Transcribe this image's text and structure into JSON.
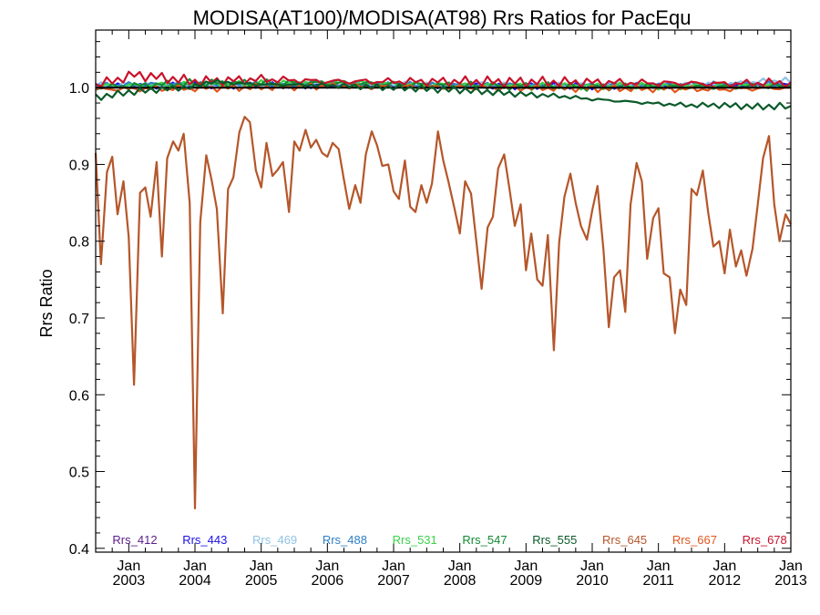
{
  "chart_data": {
    "type": "line",
    "title": "MODISA(AT100)/MODISA(AT98)  Rrs Ratios for PacEqu",
    "xlabel": "",
    "ylabel": "Rrs Ratio",
    "ylim": [
      0.395,
      1.075
    ],
    "yticks": [
      0.4,
      0.5,
      0.6,
      0.7,
      0.8,
      0.9,
      1.0
    ],
    "ytick_labels": [
      "0.4",
      "0.5",
      "0.6",
      "0.7",
      "0.8",
      "0.9",
      "1.0"
    ],
    "xlim": [
      2002.5,
      2013.0
    ],
    "xticks": [
      2003,
      2004,
      2005,
      2006,
      2007,
      2008,
      2009,
      2010,
      2011,
      2012,
      2013
    ],
    "xtick_labels": [
      {
        "month": "Jan",
        "year": "2003"
      },
      {
        "month": "Jan",
        "year": "2004"
      },
      {
        "month": "Jan",
        "year": "2005"
      },
      {
        "month": "Jan",
        "year": "2006"
      },
      {
        "month": "Jan",
        "year": "2007"
      },
      {
        "month": "Jan",
        "year": "2008"
      },
      {
        "month": "Jan",
        "year": "2009"
      },
      {
        "month": "Jan",
        "year": "2010"
      },
      {
        "month": "Jan",
        "year": "2011"
      },
      {
        "month": "Jan",
        "year": "2012"
      },
      {
        "month": "Jan",
        "year": "2013"
      }
    ],
    "reference_line": 1.0,
    "legend_position": "bottom",
    "series": [
      {
        "name": "Rrs_412",
        "color": "#5a1e8c",
        "noise": [
          0.004,
          0.003
        ],
        "values": [
          [
            2002.5,
            1.001
          ],
          [
            2004,
            1.002
          ],
          [
            2006,
            1.003
          ],
          [
            2008,
            1.002
          ],
          [
            2010,
            1.001
          ],
          [
            2012,
            1.002
          ],
          [
            2013,
            1.003
          ]
        ]
      },
      {
        "name": "Rrs_443",
        "color": "#1a10e8",
        "noise": [
          0.004,
          0.004
        ],
        "values": [
          [
            2002.5,
            1.002
          ],
          [
            2004,
            1.003
          ],
          [
            2006,
            1.003
          ],
          [
            2008,
            1.002
          ],
          [
            2010,
            1.002
          ],
          [
            2012,
            1.003
          ],
          [
            2013,
            1.004
          ]
        ]
      },
      {
        "name": "Rrs_469",
        "color": "#90c4e6",
        "noise": [
          0.004,
          0.004
        ],
        "values": [
          [
            2002.5,
            1.003
          ],
          [
            2004,
            1.004
          ],
          [
            2006,
            1.004
          ],
          [
            2008,
            1.003
          ],
          [
            2010,
            1.003
          ],
          [
            2012,
            1.004
          ],
          [
            2012.9,
            1.01
          ],
          [
            2013,
            1.006
          ]
        ]
      },
      {
        "name": "Rrs_488",
        "color": "#2e7fc6",
        "noise": [
          0.004,
          0.004
        ],
        "values": [
          [
            2002.5,
            1.003
          ],
          [
            2004,
            1.005
          ],
          [
            2006,
            1.004
          ],
          [
            2008,
            1.003
          ],
          [
            2010,
            1.003
          ],
          [
            2012,
            1.004
          ],
          [
            2013,
            1.004
          ]
        ]
      },
      {
        "name": "Rrs_531",
        "color": "#3ad24a",
        "noise": [
          0.004,
          0.005
        ],
        "values": [
          [
            2002.5,
            1.002
          ],
          [
            2004,
            1.004
          ],
          [
            2006,
            1.006
          ],
          [
            2008,
            1.003
          ],
          [
            2010,
            1.002
          ],
          [
            2012,
            1.002
          ],
          [
            2013,
            1.003
          ]
        ]
      },
      {
        "name": "Rrs_547",
        "color": "#148a32",
        "noise": [
          0.005,
          0.005
        ],
        "values": [
          [
            2002.5,
            1.0
          ],
          [
            2004,
            1.006
          ],
          [
            2006,
            1.006
          ],
          [
            2008,
            1.003
          ],
          [
            2010,
            1.001
          ],
          [
            2012,
            1.001
          ],
          [
            2013,
            1.002
          ]
        ]
      },
      {
        "name": "Rrs_555",
        "color": "#0b5a2a",
        "noise": [
          0.006,
          0.002
        ],
        "values": [
          [
            2002.5,
            0.987
          ],
          [
            2003,
            0.994
          ],
          [
            2003.5,
            0.998
          ],
          [
            2004,
            1.001
          ],
          [
            2004.2,
            1.008
          ],
          [
            2005,
            1.004
          ],
          [
            2006,
            1.003
          ],
          [
            2007,
            1.0
          ],
          [
            2008,
            0.997
          ],
          [
            2008.5,
            0.994
          ],
          [
            2009,
            0.991
          ],
          [
            2009.5,
            0.989
          ],
          [
            2010,
            0.985
          ],
          [
            2010.5,
            0.982
          ],
          [
            2011,
            0.979
          ],
          [
            2011.5,
            0.977
          ],
          [
            2012,
            0.977
          ],
          [
            2012.5,
            0.975
          ],
          [
            2013,
            0.976
          ]
        ]
      },
      {
        "name": "Rrs_645",
        "color": "#b5562a",
        "noise": [
          0,
          0
        ],
        "values": [
          [
            2002.5,
            0.915
          ],
          [
            2002.58,
            0.77
          ],
          [
            2002.67,
            0.89
          ],
          [
            2002.75,
            0.91
          ],
          [
            2002.83,
            0.835
          ],
          [
            2002.92,
            0.878
          ],
          [
            2003.0,
            0.805
          ],
          [
            2003.08,
            0.613
          ],
          [
            2003.17,
            0.863
          ],
          [
            2003.25,
            0.87
          ],
          [
            2003.33,
            0.832
          ],
          [
            2003.42,
            0.903
          ],
          [
            2003.5,
            0.78
          ],
          [
            2003.58,
            0.908
          ],
          [
            2003.67,
            0.93
          ],
          [
            2003.75,
            0.918
          ],
          [
            2003.83,
            0.94
          ],
          [
            2003.92,
            0.85
          ],
          [
            2004.0,
            0.452
          ],
          [
            2004.08,
            0.825
          ],
          [
            2004.17,
            0.912
          ],
          [
            2004.25,
            0.88
          ],
          [
            2004.33,
            0.842
          ],
          [
            2004.42,
            0.706
          ],
          [
            2004.5,
            0.868
          ],
          [
            2004.58,
            0.883
          ],
          [
            2004.67,
            0.942
          ],
          [
            2004.75,
            0.962
          ],
          [
            2004.83,
            0.955
          ],
          [
            2004.92,
            0.892
          ],
          [
            2005.0,
            0.87
          ],
          [
            2005.08,
            0.928
          ],
          [
            2005.17,
            0.885
          ],
          [
            2005.25,
            0.893
          ],
          [
            2005.33,
            0.903
          ],
          [
            2005.42,
            0.838
          ],
          [
            2005.5,
            0.93
          ],
          [
            2005.58,
            0.918
          ],
          [
            2005.67,
            0.945
          ],
          [
            2005.75,
            0.922
          ],
          [
            2005.83,
            0.932
          ],
          [
            2005.92,
            0.915
          ],
          [
            2006.0,
            0.91
          ],
          [
            2006.08,
            0.928
          ],
          [
            2006.17,
            0.92
          ],
          [
            2006.25,
            0.88
          ],
          [
            2006.33,
            0.842
          ],
          [
            2006.42,
            0.873
          ],
          [
            2006.5,
            0.85
          ],
          [
            2006.58,
            0.913
          ],
          [
            2006.67,
            0.943
          ],
          [
            2006.75,
            0.925
          ],
          [
            2006.83,
            0.898
          ],
          [
            2006.92,
            0.9
          ],
          [
            2007.0,
            0.865
          ],
          [
            2007.08,
            0.855
          ],
          [
            2007.17,
            0.905
          ],
          [
            2007.25,
            0.845
          ],
          [
            2007.33,
            0.838
          ],
          [
            2007.42,
            0.873
          ],
          [
            2007.5,
            0.85
          ],
          [
            2007.58,
            0.875
          ],
          [
            2007.67,
            0.943
          ],
          [
            2007.75,
            0.905
          ],
          [
            2007.83,
            0.877
          ],
          [
            2007.92,
            0.842
          ],
          [
            2008.0,
            0.81
          ],
          [
            2008.08,
            0.878
          ],
          [
            2008.17,
            0.862
          ],
          [
            2008.25,
            0.8
          ],
          [
            2008.33,
            0.738
          ],
          [
            2008.42,
            0.818
          ],
          [
            2008.5,
            0.832
          ],
          [
            2008.58,
            0.895
          ],
          [
            2008.67,
            0.913
          ],
          [
            2008.75,
            0.868
          ],
          [
            2008.83,
            0.82
          ],
          [
            2008.92,
            0.848
          ],
          [
            2009.0,
            0.762
          ],
          [
            2009.08,
            0.81
          ],
          [
            2009.17,
            0.75
          ],
          [
            2009.25,
            0.742
          ],
          [
            2009.33,
            0.808
          ],
          [
            2009.42,
            0.658
          ],
          [
            2009.5,
            0.798
          ],
          [
            2009.58,
            0.858
          ],
          [
            2009.67,
            0.888
          ],
          [
            2009.75,
            0.85
          ],
          [
            2009.83,
            0.82
          ],
          [
            2009.92,
            0.802
          ],
          [
            2010.0,
            0.84
          ],
          [
            2010.08,
            0.872
          ],
          [
            2010.17,
            0.788
          ],
          [
            2010.25,
            0.688
          ],
          [
            2010.33,
            0.753
          ],
          [
            2010.42,
            0.762
          ],
          [
            2010.5,
            0.708
          ],
          [
            2010.58,
            0.848
          ],
          [
            2010.67,
            0.902
          ],
          [
            2010.75,
            0.878
          ],
          [
            2010.83,
            0.777
          ],
          [
            2010.92,
            0.83
          ],
          [
            2011.0,
            0.843
          ],
          [
            2011.08,
            0.758
          ],
          [
            2011.17,
            0.753
          ],
          [
            2011.25,
            0.68
          ],
          [
            2011.33,
            0.737
          ],
          [
            2011.42,
            0.717
          ],
          [
            2011.5,
            0.868
          ],
          [
            2011.58,
            0.86
          ],
          [
            2011.67,
            0.892
          ],
          [
            2011.75,
            0.838
          ],
          [
            2011.83,
            0.793
          ],
          [
            2011.92,
            0.8
          ],
          [
            2012.0,
            0.758
          ],
          [
            2012.08,
            0.815
          ],
          [
            2012.17,
            0.767
          ],
          [
            2012.25,
            0.788
          ],
          [
            2012.33,
            0.755
          ],
          [
            2012.42,
            0.79
          ],
          [
            2012.5,
            0.848
          ],
          [
            2012.58,
            0.908
          ],
          [
            2012.67,
            0.937
          ],
          [
            2012.75,
            0.848
          ],
          [
            2012.83,
            0.8
          ],
          [
            2012.92,
            0.835
          ],
          [
            2013.0,
            0.822
          ]
        ]
      },
      {
        "name": "Rrs_667",
        "color": "#e2561e",
        "noise": [
          0.005,
          0.004
        ],
        "values": [
          [
            2002.5,
            0.998
          ],
          [
            2004,
            0.999
          ],
          [
            2006,
            1.002
          ],
          [
            2008,
            1.0
          ],
          [
            2010,
            0.999
          ],
          [
            2012,
            0.998
          ],
          [
            2013,
            1.0
          ]
        ]
      },
      {
        "name": "Rrs_678",
        "color": "#c8122a",
        "noise": [
          0.008,
          0.005
        ],
        "values": [
          [
            2002.5,
            1.003
          ],
          [
            2003.1,
            1.017
          ],
          [
            2004,
            1.008
          ],
          [
            2005,
            1.011
          ],
          [
            2006,
            1.008
          ],
          [
            2008,
            1.008
          ],
          [
            2010,
            1.007
          ],
          [
            2012,
            1.005
          ],
          [
            2013,
            1.007
          ]
        ]
      }
    ]
  }
}
